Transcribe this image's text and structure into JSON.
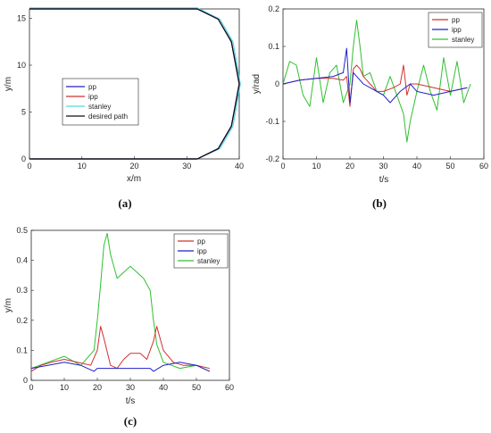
{
  "colors": {
    "pp": "#2020c8",
    "ipp": "#d03030",
    "stanley": "#50d8e8",
    "desired": "#111111",
    "pp_b": "#d03030",
    "ipp_b": "#2020c8",
    "stanley_b": "#30c030"
  },
  "chart_data": [
    {
      "id": "a",
      "caption": "(a)",
      "type": "line",
      "xlabel": "x/m",
      "ylabel": "y/m",
      "xlim": [
        0,
        40
      ],
      "ylim": [
        0,
        16
      ],
      "xticks": [
        "0",
        "10",
        "20",
        "30",
        "40"
      ],
      "yticks": [
        "0",
        "5",
        "10",
        "15"
      ],
      "legend": [
        "pp",
        "ipp",
        "stanley",
        "desired path"
      ],
      "legend_position": "center",
      "grid": false,
      "path_description": "straight line y=0 from x=0 to 32, semicircle of radius 8 centered at (32,8) to x=40, straight line y=16 back to x=0",
      "series": [
        {
          "name": "pp",
          "x": [
            0,
            32,
            36,
            38.5,
            40,
            38.5,
            36,
            32,
            0
          ],
          "y": [
            0,
            0,
            1.1,
            3.5,
            8,
            12.5,
            14.9,
            16,
            16
          ]
        },
        {
          "name": "ipp",
          "x": [
            0,
            32,
            36,
            38.5,
            40,
            38.5,
            36,
            32,
            0
          ],
          "y": [
            0,
            0,
            1.1,
            3.5,
            8,
            12.5,
            14.9,
            16,
            16
          ]
        },
        {
          "name": "stanley",
          "x": [
            0,
            32,
            36.3,
            38.8,
            40.2,
            38.8,
            36.3,
            32,
            0
          ],
          "y": [
            0,
            0,
            1.1,
            3.5,
            8,
            12.5,
            14.9,
            16.1,
            16.1
          ]
        },
        {
          "name": "desired path",
          "x": [
            0,
            32,
            36,
            38.5,
            40,
            38.5,
            36,
            32,
            0
          ],
          "y": [
            0,
            0,
            1.1,
            3.5,
            8,
            12.5,
            14.9,
            16,
            16
          ]
        }
      ]
    },
    {
      "id": "b",
      "caption": "(b)",
      "type": "line",
      "xlabel": "t/s",
      "ylabel": "y/rad",
      "xlim": [
        0,
        60
      ],
      "ylim": [
        -0.2,
        0.2
      ],
      "xticks": [
        "0",
        "10",
        "20",
        "30",
        "40",
        "50",
        "60"
      ],
      "yticks": [
        "-0.2",
        "-0.1",
        "0",
        "0.1",
        "0.2"
      ],
      "legend": [
        "pp",
        "ipp",
        "stanley"
      ],
      "legend_position": "top-right",
      "grid": false,
      "series": [
        {
          "name": "pp",
          "x": [
            0,
            5,
            10,
            15,
            18,
            19,
            20,
            21,
            22,
            23,
            24,
            25,
            26,
            27,
            28,
            30,
            33,
            35,
            36,
            37,
            38,
            40,
            45,
            50,
            55
          ],
          "y": [
            0,
            0.01,
            0.015,
            0.015,
            0.01,
            0.02,
            -0.06,
            0.04,
            0.05,
            0.04,
            0.02,
            0.01,
            0.0,
            -0.01,
            -0.02,
            -0.02,
            -0.01,
            0.0,
            0.05,
            -0.03,
            0.0,
            0.0,
            -0.01,
            -0.02,
            -0.01
          ]
        },
        {
          "name": "ipp",
          "x": [
            0,
            5,
            10,
            15,
            18,
            19,
            20,
            21,
            22,
            23,
            24,
            26,
            28,
            30,
            32,
            35,
            38,
            40,
            45,
            50,
            55
          ],
          "y": [
            0.0,
            0.01,
            0.015,
            0.02,
            0.03,
            0.095,
            -0.05,
            0.03,
            0.02,
            0.01,
            0.0,
            -0.01,
            -0.02,
            -0.03,
            -0.05,
            -0.02,
            0.0,
            -0.02,
            -0.03,
            -0.02,
            -0.01
          ]
        },
        {
          "name": "stanley",
          "x": [
            0,
            2,
            4,
            6,
            8,
            10,
            12,
            14,
            16,
            18,
            20,
            21,
            22,
            23,
            24,
            26,
            28,
            30,
            32,
            34,
            36,
            37,
            38,
            40,
            42,
            44,
            46,
            48,
            50,
            52,
            54,
            56
          ],
          "y": [
            0,
            0.06,
            0.05,
            -0.03,
            -0.06,
            0.07,
            -0.05,
            0.03,
            0.05,
            -0.05,
            0.0,
            0.1,
            0.17,
            0.1,
            0.02,
            0.03,
            -0.02,
            -0.03,
            0.02,
            -0.03,
            -0.08,
            -0.155,
            -0.1,
            -0.02,
            0.05,
            -0.02,
            -0.07,
            0.07,
            -0.03,
            0.06,
            -0.05,
            0.0
          ]
        }
      ]
    },
    {
      "id": "c",
      "caption": "(c)",
      "type": "line",
      "xlabel": "t/s",
      "ylabel": "y/m",
      "xlim": [
        0,
        60
      ],
      "ylim": [
        0,
        0.5
      ],
      "xticks": [
        "0",
        "10",
        "20",
        "30",
        "40",
        "50",
        "60"
      ],
      "yticks": [
        "0",
        "0.1",
        "0.2",
        "0.3",
        "0.4",
        "0.5"
      ],
      "legend": [
        "pp",
        "ipp",
        "stanley"
      ],
      "legend_position": "top-right",
      "grid": false,
      "series": [
        {
          "name": "pp",
          "x": [
            0,
            3,
            6,
            10,
            14,
            18,
            20,
            21,
            22,
            24,
            26,
            28,
            30,
            33,
            35,
            37,
            38,
            40,
            43,
            46,
            50,
            54
          ],
          "y": [
            0.03,
            0.05,
            0.06,
            0.07,
            0.06,
            0.05,
            0.1,
            0.18,
            0.14,
            0.05,
            0.04,
            0.07,
            0.09,
            0.09,
            0.07,
            0.13,
            0.18,
            0.1,
            0.06,
            0.05,
            0.05,
            0.04
          ]
        },
        {
          "name": "ipp",
          "x": [
            0,
            5,
            10,
            15,
            19,
            20,
            21,
            36,
            37,
            40,
            45,
            50,
            54
          ],
          "y": [
            0.04,
            0.05,
            0.06,
            0.05,
            0.03,
            0.04,
            0.04,
            0.04,
            0.03,
            0.05,
            0.06,
            0.05,
            0.03
          ]
        },
        {
          "name": "stanley",
          "x": [
            0,
            5,
            10,
            15,
            19,
            20,
            21,
            22,
            23,
            24,
            26,
            28,
            30,
            32,
            34,
            35,
            36,
            37,
            38,
            40,
            45,
            50,
            54
          ],
          "y": [
            0.04,
            0.06,
            0.08,
            0.05,
            0.1,
            0.2,
            0.32,
            0.45,
            0.49,
            0.42,
            0.34,
            0.36,
            0.38,
            0.36,
            0.34,
            0.32,
            0.3,
            0.2,
            0.12,
            0.06,
            0.04,
            0.05,
            0.03
          ]
        }
      ]
    }
  ]
}
